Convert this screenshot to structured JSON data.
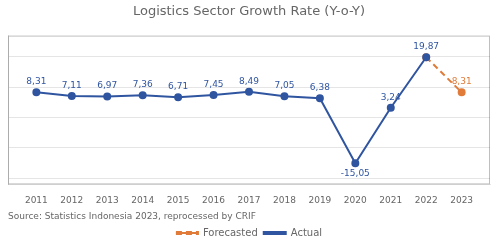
{
  "chart_data": {
    "type": "line",
    "title": "Logistics Sector Growth Rate (Y-o-Y)",
    "x": [
      2011,
      2012,
      2013,
      2014,
      2015,
      2016,
      2017,
      2018,
      2019,
      2020,
      2021,
      2022,
      2023
    ],
    "xlim": [
      2010.2,
      2023.8
    ],
    "xticks": [
      2011,
      2012,
      2013,
      2014,
      2015,
      2016,
      2017,
      2018,
      2019,
      2020,
      2021,
      2022,
      2023
    ],
    "ylim": [
      -22,
      27
    ],
    "yticks": [
      -20,
      -10,
      0,
      10,
      20
    ],
    "grid": true,
    "tick_labels": "x",
    "legend": "bottom",
    "data_labels": true,
    "series": [
      {
        "name": "Actual",
        "color": "#3055A0",
        "line_style": "solid",
        "marker": "circle",
        "values": [
          8.31,
          7.11,
          6.97,
          7.36,
          6.71,
          7.45,
          8.49,
          7.05,
          6.38,
          -15.05,
          3.24,
          19.87,
          null
        ],
        "value_labels": [
          "8,31",
          "7,11",
          "6,97",
          "7,36",
          "6,71",
          "7,45",
          "8,49",
          "7,05",
          "6,38",
          "-15,05",
          "3,24",
          "19,87",
          null
        ]
      },
      {
        "name": "Forecasted",
        "color": "#E07B39",
        "line_style": "dashed",
        "marker": "circle",
        "values": [
          null,
          null,
          null,
          null,
          null,
          null,
          null,
          null,
          null,
          null,
          null,
          19.87,
          8.31
        ],
        "value_labels": [
          null,
          null,
          null,
          null,
          null,
          null,
          null,
          null,
          null,
          null,
          null,
          null,
          "8,31"
        ]
      }
    ],
    "annotations": [
      "Source: Statistics Indonesia 2023, reprocessed by CRIF"
    ]
  }
}
